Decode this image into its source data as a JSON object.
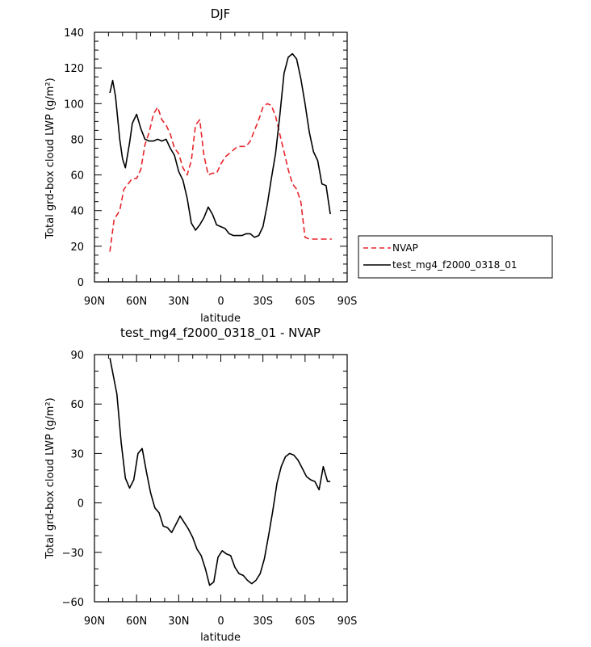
{
  "chart_data": [
    {
      "type": "line",
      "title": "DJF",
      "xlabel": "latitude",
      "ylabel": "Total grd-box cloud LWP (g/m²)",
      "xticks": [
        "90N",
        "60N",
        "30N",
        "0",
        "30S",
        "60S",
        "90S"
      ],
      "xlim": [
        -90,
        90
      ],
      "ylim": [
        0,
        140
      ],
      "yticks": [
        0,
        20,
        40,
        60,
        80,
        100,
        120,
        140
      ],
      "legend_position": "right",
      "series": [
        {
          "name": "NVAP",
          "color": "#e8242a",
          "dash": "dashed",
          "x": [
            -79,
            -76,
            -72,
            -69,
            -66,
            -63,
            -60,
            -57,
            -54,
            -51,
            -48,
            -45,
            -42,
            -39,
            -36,
            -33,
            -30,
            -27,
            -24,
            -21,
            -18,
            -15,
            -12,
            -9,
            -6,
            -3,
            0,
            3,
            6,
            9,
            12,
            15,
            18,
            21,
            24,
            27,
            30,
            33,
            36,
            39,
            42,
            45,
            48,
            51,
            54,
            57,
            60,
            63,
            66,
            69,
            72,
            75,
            79
          ],
          "y": [
            17,
            35,
            40,
            52,
            55,
            58,
            58,
            63,
            77,
            84,
            94,
            98,
            91,
            88,
            83,
            75,
            72,
            64,
            60,
            68,
            88,
            91,
            71,
            60,
            61,
            61,
            66,
            70,
            72,
            74,
            76,
            76,
            76,
            79,
            85,
            91,
            98,
            100,
            99,
            93,
            83,
            73,
            63,
            55,
            52,
            45,
            25,
            24,
            24,
            24,
            24,
            24,
            24
          ]
        },
        {
          "name": "test_mg4_f2000_0318_01",
          "color": "#000000",
          "dash": "solid",
          "x": [
            -79,
            -77,
            -75,
            -72,
            -70,
            -68,
            -65,
            -63,
            -60,
            -57,
            -54,
            -51,
            -48,
            -45,
            -42,
            -39,
            -36,
            -33,
            -30,
            -27,
            -24,
            -21,
            -18,
            -15,
            -12,
            -9,
            -6,
            -3,
            0,
            3,
            6,
            9,
            12,
            15,
            18,
            21,
            24,
            27,
            30,
            33,
            36,
            39,
            42,
            45,
            48,
            51,
            54,
            57,
            60,
            63,
            66,
            69,
            72,
            75,
            78
          ],
          "y": [
            106,
            113,
            104,
            80,
            69,
            64,
            78,
            89,
            94,
            86,
            80,
            79,
            79,
            80,
            79,
            80,
            75,
            71,
            62,
            57,
            47,
            33,
            29,
            32,
            36,
            42,
            38,
            32,
            31,
            30,
            27,
            26,
            26,
            26,
            27,
            27,
            25,
            26,
            31,
            43,
            58,
            72,
            93,
            117,
            126,
            128,
            125,
            114,
            100,
            84,
            73,
            68,
            55,
            54,
            38
          ]
        }
      ]
    },
    {
      "type": "line",
      "title": "test_mg4_f2000_0318_01 - NVAP",
      "xlabel": "latitude",
      "ylabel": "Total grd-box cloud LWP (g/m²)",
      "xticks": [
        "90N",
        "60N",
        "30N",
        "0",
        "30S",
        "60S",
        "90S"
      ],
      "xlim": [
        -90,
        90
      ],
      "ylim": [
        -60,
        90
      ],
      "yticks": [
        -60,
        -30,
        0,
        30,
        60,
        90
      ],
      "series": [
        {
          "color": "#000000",
          "dash": "solid",
          "x": [
            -79,
            -74,
            -71,
            -68,
            -65,
            -62,
            -59,
            -56,
            -53,
            -50,
            -47,
            -44,
            -41,
            -38,
            -35,
            -32,
            -29,
            -26,
            -23,
            -20,
            -17,
            -14,
            -11,
            -8,
            -5,
            -2,
            1,
            4,
            7,
            10,
            13,
            16,
            19,
            22,
            25,
            28,
            31,
            34,
            37,
            40,
            43,
            46,
            49,
            52,
            55,
            58,
            61,
            64,
            67,
            70,
            73,
            76,
            78
          ],
          "y": [
            88,
            66,
            37,
            15,
            9,
            14,
            30,
            33,
            19,
            6,
            -3,
            -6,
            -14,
            -15,
            -18,
            -13,
            -8,
            -12,
            -16,
            -21,
            -28,
            -32,
            -40,
            -50,
            -48,
            -33,
            -29,
            -31,
            -32,
            -39,
            -43,
            -44,
            -47,
            -49,
            -47,
            -43,
            -34,
            -20,
            -5,
            12,
            22,
            28,
            30,
            29,
            26,
            21,
            16,
            14,
            13,
            8,
            22,
            13,
            13
          ]
        }
      ]
    }
  ]
}
